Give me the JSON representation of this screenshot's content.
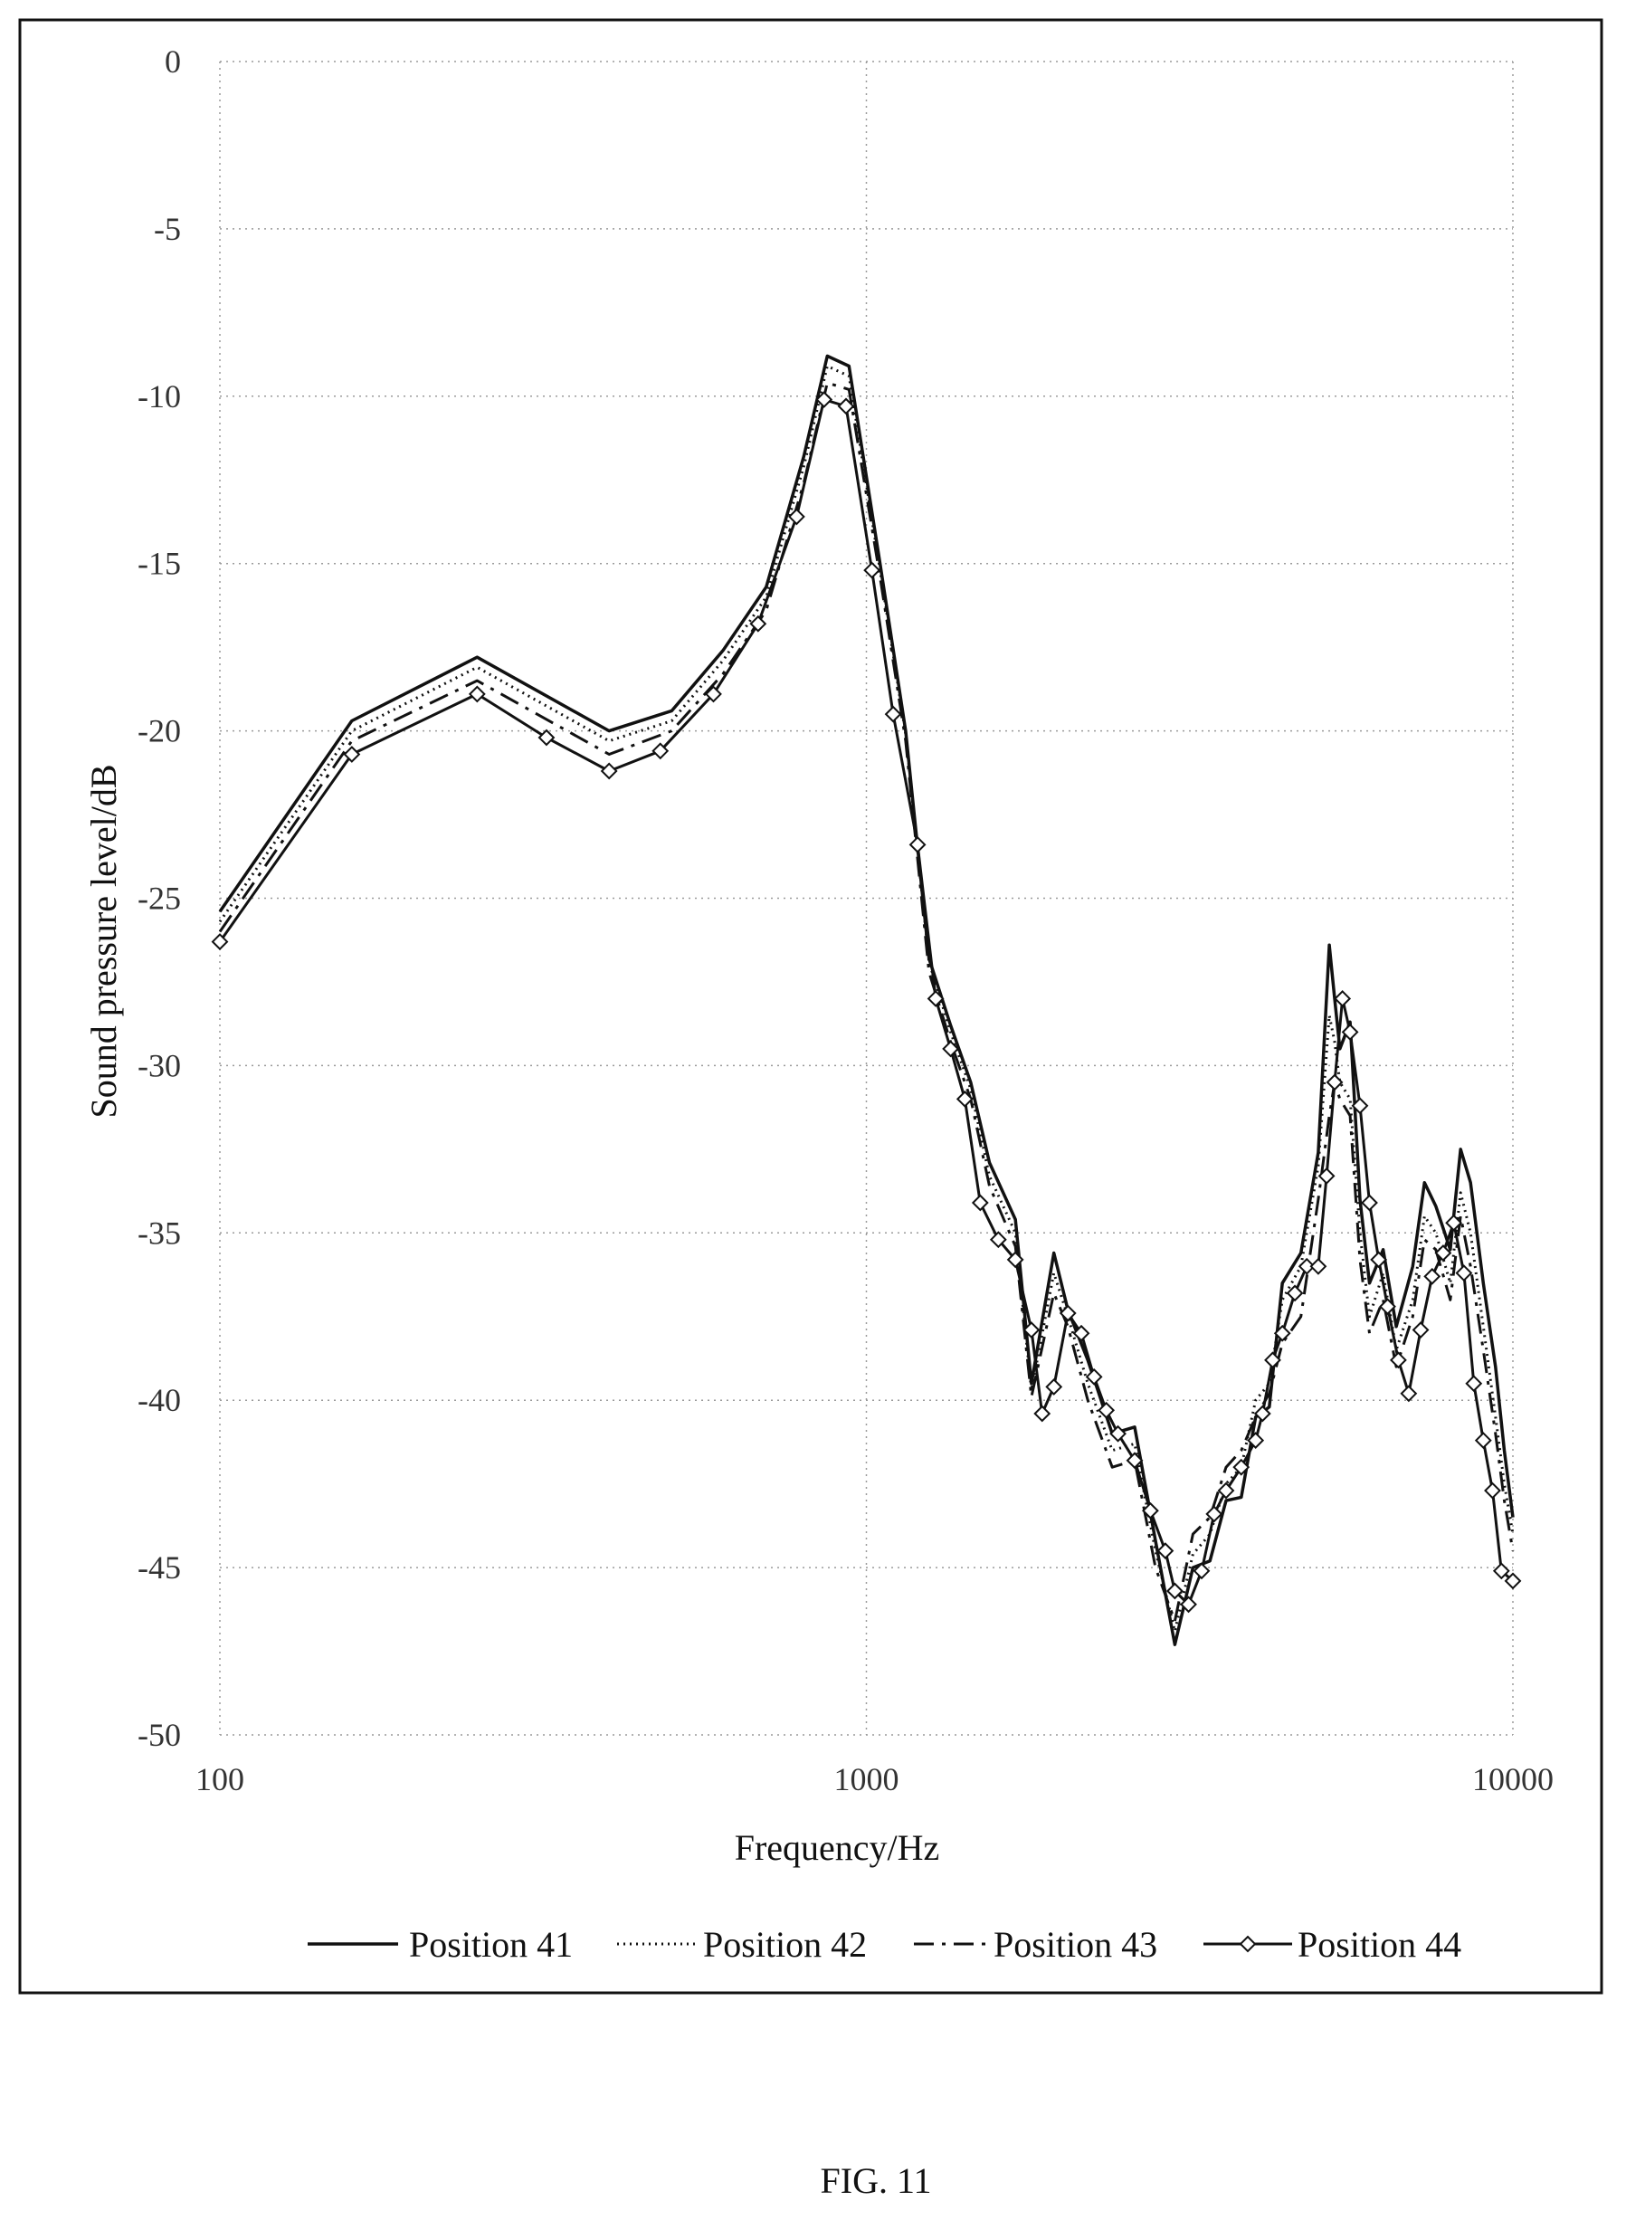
{
  "figure_caption": "FIG. 11",
  "chart_data": {
    "type": "line",
    "xlabel": "Frequency/Hz",
    "ylabel": "Sound pressure level/dB",
    "xscale": "log",
    "xlim": [
      100,
      10000
    ],
    "ylim": [
      -50,
      0
    ],
    "xticks": [
      100,
      1000,
      10000
    ],
    "xtick_labels": [
      "100",
      "1000",
      "10000"
    ],
    "yticks": [
      0,
      -5,
      -10,
      -15,
      -20,
      -25,
      -30,
      -35,
      -40,
      -45,
      -50
    ],
    "ytick_labels": [
      "0",
      "-5",
      "-10",
      "-15",
      "-20",
      "-25",
      "-30",
      "-35",
      "-40",
      "-45",
      "-50"
    ],
    "grid": "dotted",
    "legend_position": "bottom",
    "series": [
      {
        "name": "Position 41",
        "style": "solid",
        "x": [
          100,
          160,
          250,
          400,
          500,
          600,
          700,
          800,
          870,
          940,
          1050,
          1150,
          1250,
          1350,
          1450,
          1550,
          1700,
          1800,
          1950,
          2050,
          2200,
          2400,
          2600,
          2800,
          3000,
          3200,
          3400,
          3600,
          3800,
          4000,
          4200,
          4400,
          4700,
          5000,
          5200,
          5300,
          5400,
          5600,
          5800,
          6000,
          6300,
          6600,
          7000,
          7300,
          7600,
          8000,
          8300,
          8600,
          9000,
          9400,
          9700,
          10000
        ],
        "y": [
          -25.4,
          -19.7,
          -17.8,
          -20.0,
          -19.4,
          -17.6,
          -15.7,
          -11.8,
          -8.8,
          -9.1,
          -15.0,
          -20.0,
          -26.8,
          -28.8,
          -30.5,
          -32.9,
          -34.6,
          -39.5,
          -35.6,
          -37.3,
          -38.8,
          -41.0,
          -40.8,
          -44.2,
          -47.3,
          -45.0,
          -44.8,
          -43.0,
          -42.9,
          -40.5,
          -40.2,
          -36.5,
          -35.6,
          -32.6,
          -26.4,
          -28.0,
          -29.5,
          -28.7,
          -34.0,
          -36.5,
          -35.5,
          -37.8,
          -36.0,
          -33.5,
          -34.2,
          -35.5,
          -32.5,
          -33.5,
          -36.5,
          -39.0,
          -41.5,
          -43.5
        ]
      },
      {
        "name": "Position 42",
        "style": "dotted",
        "x": [
          100,
          160,
          250,
          400,
          500,
          600,
          700,
          800,
          870,
          940,
          1050,
          1150,
          1250,
          1350,
          1450,
          1550,
          1700,
          1800,
          1950,
          2050,
          2200,
          2400,
          2600,
          2800,
          3000,
          3200,
          3400,
          3600,
          3800,
          4000,
          4200,
          4400,
          4700,
          5000,
          5200,
          5300,
          5400,
          5600,
          5800,
          6000,
          6300,
          6600,
          7000,
          7300,
          7600,
          8000,
          8300,
          8600,
          9000,
          9400,
          9700,
          10000
        ],
        "y": [
          -25.7,
          -20.0,
          -18.1,
          -20.3,
          -19.7,
          -17.9,
          -16.0,
          -12.1,
          -9.1,
          -9.4,
          -15.2,
          -20.1,
          -26.9,
          -29.0,
          -30.7,
          -33.3,
          -35.0,
          -39.7,
          -36.2,
          -37.5,
          -39.5,
          -41.5,
          -41.3,
          -44.5,
          -46.9,
          -44.6,
          -44.0,
          -42.5,
          -42.0,
          -40.0,
          -39.5,
          -37.0,
          -36.0,
          -33.0,
          -28.5,
          -29.3,
          -30.5,
          -31.0,
          -35.0,
          -37.5,
          -36.2,
          -38.5,
          -37.0,
          -34.5,
          -35.0,
          -36.5,
          -33.8,
          -35.0,
          -37.8,
          -40.5,
          -42.5,
          -44.0
        ]
      },
      {
        "name": "Position 43",
        "style": "dashdot",
        "x": [
          100,
          160,
          250,
          400,
          500,
          600,
          700,
          800,
          870,
          940,
          1050,
          1150,
          1250,
          1350,
          1450,
          1550,
          1700,
          1800,
          1950,
          2050,
          2200,
          2400,
          2600,
          2800,
          3000,
          3200,
          3400,
          3600,
          3800,
          4000,
          4200,
          4400,
          4700,
          5000,
          5200,
          5300,
          5400,
          5600,
          5800,
          6000,
          6300,
          6600,
          7000,
          7300,
          7600,
          8000,
          8300,
          8600,
          9000,
          9400,
          9700,
          10000
        ],
        "y": [
          -26.0,
          -20.3,
          -18.5,
          -20.7,
          -20.0,
          -18.3,
          -16.4,
          -12.6,
          -9.6,
          -9.8,
          -15.4,
          -20.3,
          -27.2,
          -29.3,
          -31.0,
          -33.6,
          -35.4,
          -39.9,
          -36.8,
          -37.8,
          -40.0,
          -42.0,
          -41.8,
          -45.0,
          -46.6,
          -44.0,
          -43.5,
          -42.0,
          -41.5,
          -40.5,
          -39.8,
          -38.3,
          -37.5,
          -34.0,
          -31.5,
          -30.5,
          -31.0,
          -31.5,
          -35.8,
          -38.0,
          -37.0,
          -39.0,
          -37.5,
          -35.2,
          -35.5,
          -37.0,
          -34.5,
          -36.0,
          -38.5,
          -41.0,
          -43.0,
          -44.5
        ]
      },
      {
        "name": "Position 44",
        "style": "diamond",
        "x": [
          100,
          160,
          250,
          320,
          400,
          480,
          580,
          680,
          780,
          860,
          930,
          1020,
          1100,
          1200,
          1280,
          1350,
          1420,
          1500,
          1600,
          1700,
          1800,
          1870,
          1950,
          2050,
          2150,
          2250,
          2350,
          2450,
          2600,
          2750,
          2900,
          3000,
          3150,
          3300,
          3450,
          3600,
          3800,
          4000,
          4100,
          4250,
          4400,
          4600,
          4800,
          5000,
          5150,
          5300,
          5450,
          5600,
          5800,
          6000,
          6200,
          6400,
          6650,
          6900,
          7200,
          7500,
          7800,
          8100,
          8400,
          8700,
          9000,
          9300,
          9600,
          10000
        ],
        "y": [
          -26.3,
          -20.7,
          -18.9,
          -20.2,
          -21.2,
          -20.6,
          -18.9,
          -16.8,
          -13.6,
          -10.1,
          -10.3,
          -15.2,
          -19.5,
          -23.4,
          -28.0,
          -29.5,
          -31.0,
          -34.1,
          -35.2,
          -35.8,
          -37.9,
          -40.4,
          -39.6,
          -37.4,
          -38.0,
          -39.3,
          -40.3,
          -41.0,
          -41.8,
          -43.3,
          -44.5,
          -45.7,
          -46.1,
          -45.1,
          -43.4,
          -42.7,
          -42.0,
          -41.2,
          -40.4,
          -38.8,
          -38.0,
          -36.8,
          -36.0,
          -36.0,
          -33.3,
          -30.5,
          -28.0,
          -29.0,
          -31.2,
          -34.1,
          -35.8,
          -37.2,
          -38.8,
          -39.8,
          -37.9,
          -36.3,
          -35.6,
          -34.7,
          -36.2,
          -39.5,
          -41.2,
          -42.7,
          -45.1,
          -45.4
        ]
      }
    ]
  }
}
